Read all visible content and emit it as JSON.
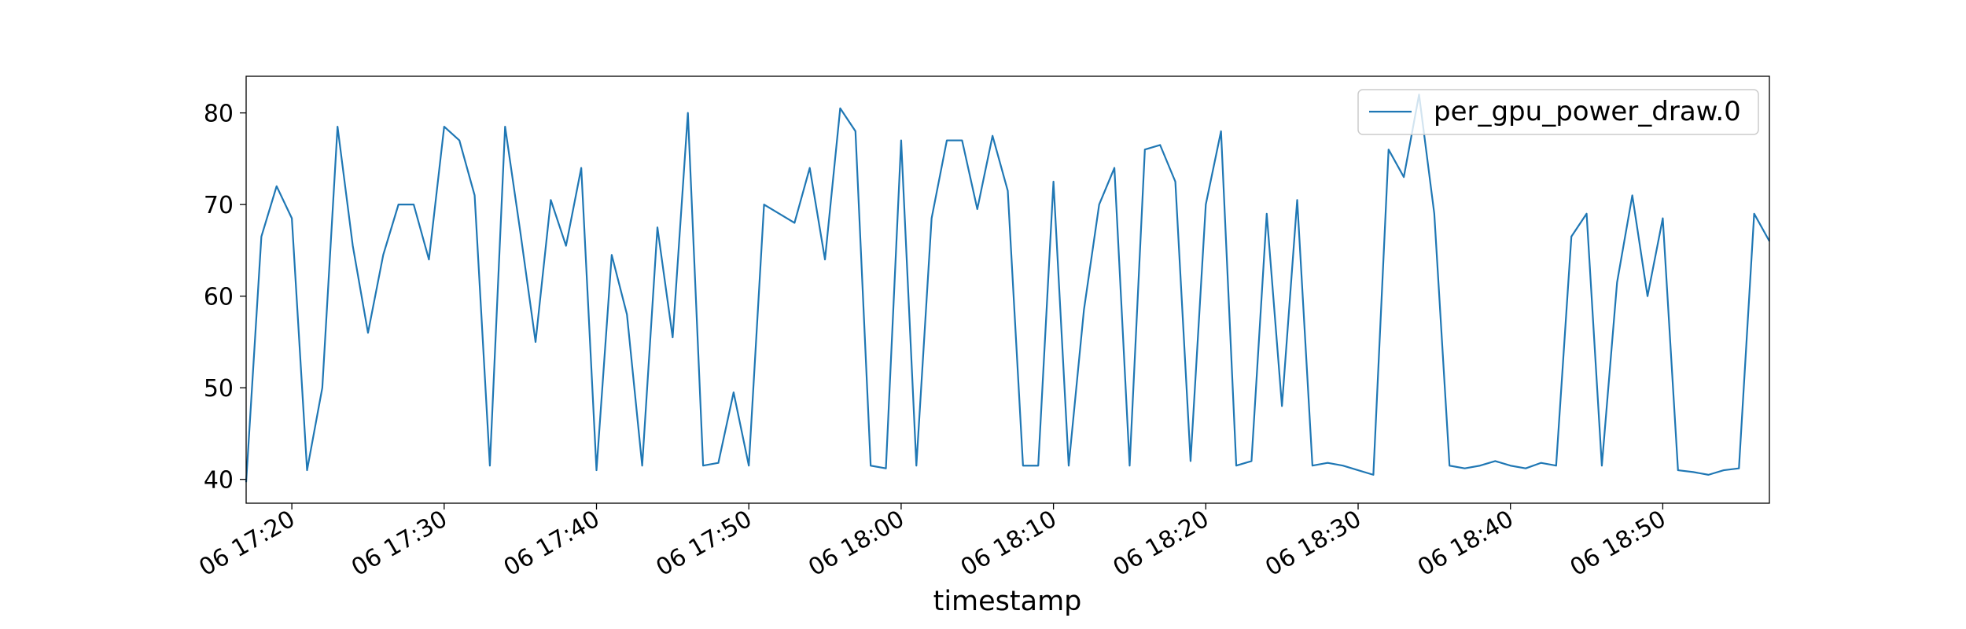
{
  "chart_data": {
    "type": "line",
    "xlabel": "timestamp",
    "x": [
      "06 17:17",
      "06 17:18",
      "06 17:19",
      "06 17:20",
      "06 17:21",
      "06 17:22",
      "06 17:23",
      "06 17:24",
      "06 17:25",
      "06 17:26",
      "06 17:27",
      "06 17:28",
      "06 17:29",
      "06 17:30",
      "06 17:31",
      "06 17:32",
      "06 17:33",
      "06 17:34",
      "06 17:35",
      "06 17:36",
      "06 17:37",
      "06 17:38",
      "06 17:39",
      "06 17:40",
      "06 17:41",
      "06 17:42",
      "06 17:43",
      "06 17:44",
      "06 17:45",
      "06 17:46",
      "06 17:47",
      "06 17:48",
      "06 17:49",
      "06 17:50",
      "06 17:51",
      "06 17:52",
      "06 17:53",
      "06 17:54",
      "06 17:55",
      "06 17:56",
      "06 17:57",
      "06 17:58",
      "06 17:59",
      "06 18:00",
      "06 18:01",
      "06 18:02",
      "06 18:03",
      "06 18:04",
      "06 18:05",
      "06 18:06",
      "06 18:07",
      "06 18:08",
      "06 18:09",
      "06 18:10",
      "06 18:11",
      "06 18:12",
      "06 18:13",
      "06 18:14",
      "06 18:15",
      "06 18:16",
      "06 18:17",
      "06 18:18",
      "06 18:19",
      "06 18:20",
      "06 18:21",
      "06 18:22",
      "06 18:23",
      "06 18:24",
      "06 18:25",
      "06 18:26",
      "06 18:27",
      "06 18:28",
      "06 18:29",
      "06 18:30",
      "06 18:31",
      "06 18:32",
      "06 18:33",
      "06 18:34",
      "06 18:35",
      "06 18:36",
      "06 18:37",
      "06 18:38",
      "06 18:39",
      "06 18:40",
      "06 18:41",
      "06 18:42",
      "06 18:43",
      "06 18:44",
      "06 18:45",
      "06 18:46",
      "06 18:47",
      "06 18:48",
      "06 18:49",
      "06 18:50",
      "06 18:51",
      "06 18:52",
      "06 18:53",
      "06 18:54",
      "06 18:55",
      "06 18:56",
      "06 18:57"
    ],
    "series": [
      {
        "name": "per_gpu_power_draw.0",
        "color": "#1f77b4",
        "values": [
          39.7,
          66.5,
          72,
          68.5,
          41,
          50,
          78.5,
          65.5,
          56,
          64.5,
          70,
          70,
          64,
          78.5,
          77,
          71,
          41.5,
          78.5,
          67,
          55,
          70.5,
          65.5,
          74,
          41,
          64.5,
          58,
          41.5,
          67.5,
          55.5,
          80,
          41.5,
          41.8,
          49.5,
          41.5,
          70,
          69,
          68,
          74,
          64,
          80.5,
          78,
          41.5,
          41.2,
          77,
          41.5,
          68.5,
          77,
          77,
          69.5,
          77.5,
          71.5,
          41.5,
          41.5,
          72.5,
          41.5,
          58.5,
          70,
          74,
          41.5,
          76,
          76.5,
          72.5,
          42,
          70,
          78,
          41.5,
          42,
          69,
          48,
          70.5,
          41.5,
          41.8,
          41.5,
          41,
          40.5,
          76,
          73,
          82,
          69,
          41.5,
          41.2,
          41.5,
          42,
          41.5,
          41.2,
          41.8,
          41.5,
          66.5,
          69,
          41.5,
          61.5,
          71,
          60,
          68.5,
          41,
          40.8,
          40.5,
          41,
          41.2,
          69,
          66
        ]
      }
    ],
    "xlim": [
      "06 17:17",
      "06 18:57"
    ],
    "xticks": [
      "06 17:20",
      "06 17:30",
      "06 17:40",
      "06 17:50",
      "06 18:00",
      "06 18:10",
      "06 18:20",
      "06 18:30",
      "06 18:40",
      "06 18:50"
    ],
    "ylim": [
      37.4,
      84
    ],
    "yticks": [
      40,
      50,
      60,
      70,
      80
    ],
    "legend": "upper right"
  }
}
